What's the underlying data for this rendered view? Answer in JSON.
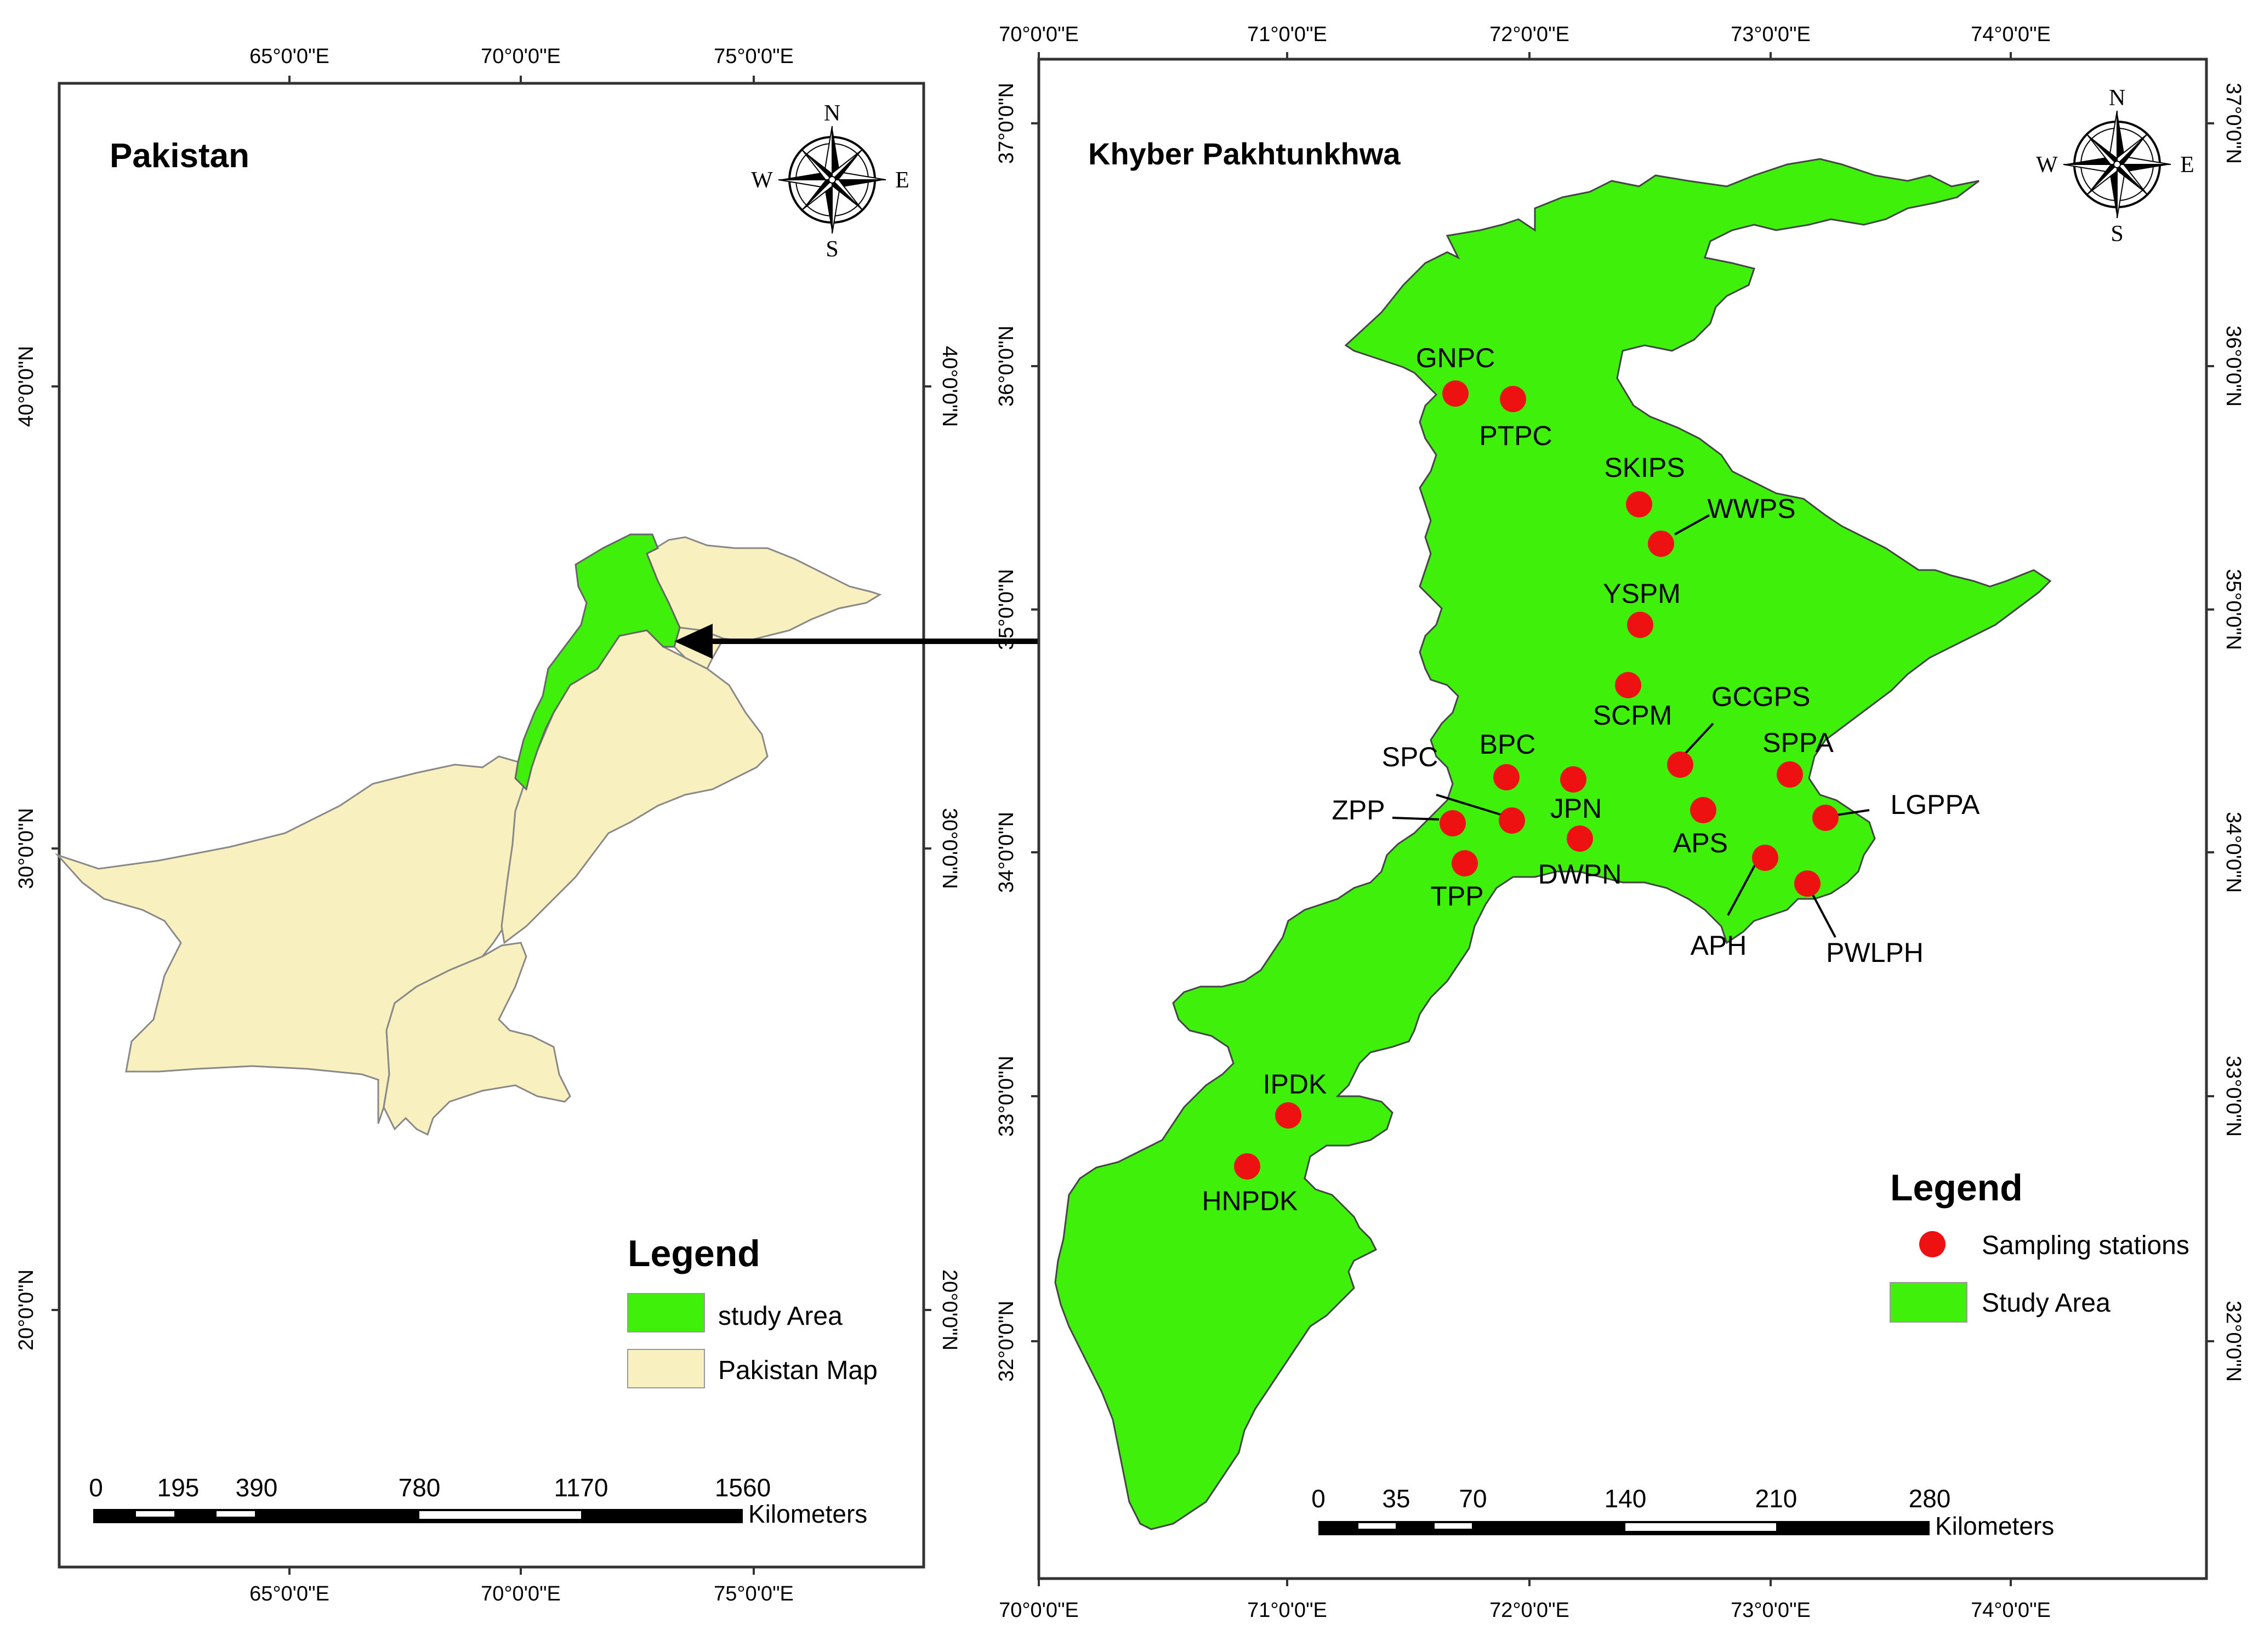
{
  "left_map": {
    "title": "Pakistan",
    "top_ticks": [
      "65°0'0\"E",
      "70°0'0\"E",
      "75°0'0\"E"
    ],
    "bottom_ticks": [
      "65°0'0\"E",
      "70°0'0\"E",
      "75°0'0\"E"
    ],
    "left_ticks": [
      "40°0'0\"N",
      "30°0'0\"N",
      "20°0'0\"N"
    ],
    "right_ticks": [
      "40°0'0\"N",
      "30°0'0\"N",
      "20°0'0\"N"
    ],
    "compass": {
      "n": "N",
      "e": "E",
      "s": "S",
      "w": "W"
    },
    "legend": {
      "title": "Legend",
      "items": [
        {
          "label": "study Area",
          "color": "#3ef00a"
        },
        {
          "label": "Pakistan Map",
          "color": "#f9f0c0"
        }
      ]
    },
    "scale": {
      "labels": [
        "0",
        "195",
        "390",
        "780",
        "1170",
        "1560"
      ],
      "unit": "Kilometers"
    }
  },
  "right_map": {
    "title": "Khyber Pakhtunkhwa",
    "top_ticks": [
      "70°0'0\"E",
      "71°0'0\"E",
      "72°0'0\"E",
      "73°0'0\"E",
      "74°0'0\"E"
    ],
    "bottom_ticks": [
      "70°0'0\"E",
      "71°0'0\"E",
      "72°0'0\"E",
      "73°0'0\"E",
      "74°0'0\"E"
    ],
    "left_ticks": [
      "37°0'0\"N",
      "36°0'0\"N",
      "35°0'0\"N",
      "34°0'0\"N",
      "33°0'0\"N",
      "32°0'0\"N"
    ],
    "right_ticks": [
      "37°0'0\"N",
      "36°0'0\"N",
      "35°0'0\"N",
      "34°0'0\"N",
      "33°0'0\"N",
      "32°0'0\"N"
    ],
    "compass": {
      "n": "N",
      "e": "E",
      "s": "S",
      "w": "W"
    },
    "legend": {
      "title": "Legend",
      "items": [
        {
          "label": "Sampling stations",
          "color": "#ee1111"
        },
        {
          "label": "Study Area",
          "color": "#3ef00a"
        }
      ]
    },
    "scale": {
      "labels": [
        "0",
        "35",
        "70",
        "140",
        "210",
        "280"
      ],
      "unit": "Kilometers"
    },
    "stations": [
      {
        "name": "GNPC"
      },
      {
        "name": "PTPC"
      },
      {
        "name": "SKIPS"
      },
      {
        "name": "WWPS"
      },
      {
        "name": "YSPM"
      },
      {
        "name": "SCPM"
      },
      {
        "name": "GCGPS"
      },
      {
        "name": "SPPA"
      },
      {
        "name": "SPC"
      },
      {
        "name": "BPC"
      },
      {
        "name": "JPN"
      },
      {
        "name": "ZPP"
      },
      {
        "name": "LGPPA"
      },
      {
        "name": "APS"
      },
      {
        "name": "TPP"
      },
      {
        "name": "DWPN"
      },
      {
        "name": "APH"
      },
      {
        "name": "PWLPH"
      },
      {
        "name": "IPDK"
      },
      {
        "name": "HNPDK"
      }
    ]
  },
  "colors": {
    "study_area": "#3ef00a",
    "pakistan": "#f9f0c0",
    "station": "#ee1111",
    "frame": "#333333"
  }
}
